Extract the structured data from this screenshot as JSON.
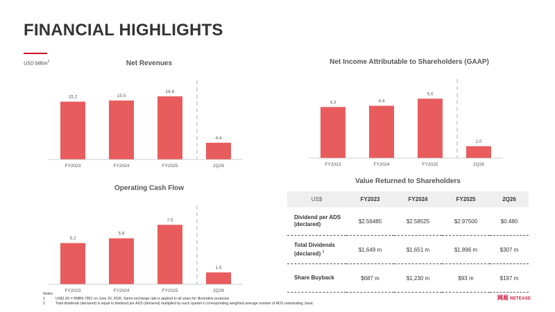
{
  "page": {
    "title": "FINANCIAL HIGHLIGHTS",
    "unit": "USD billion",
    "unit_note": "1"
  },
  "colors": {
    "bar": "#e85c5e",
    "accent": "#c8102e",
    "divider": "#cccccc"
  },
  "chart_data": [
    {
      "type": "bar",
      "title": "Net Revenues",
      "categories": [
        "FY2023",
        "FY2024",
        "FY2025",
        "2Q26"
      ],
      "values": [
        15.2,
        15.5,
        16.6,
        4.4
      ],
      "labels": [
        "15.2",
        "15.5",
        "16.6",
        "4.4"
      ],
      "ylim": [
        0,
        17.5
      ],
      "divider_before_last": true
    },
    {
      "type": "bar",
      "title": "Net Income Attributable to Shareholders (GAAP)",
      "categories": [
        "FY2023",
        "FY2024",
        "FY2025",
        "2Q26"
      ],
      "values": [
        4.3,
        4.4,
        5.0,
        1.0
      ],
      "labels": [
        "4.3",
        "4.4",
        "5.0",
        "1.0"
      ],
      "ylim": [
        0,
        5.6
      ],
      "divider_before_last": true
    },
    {
      "type": "bar",
      "title": "Operating Cash Flow",
      "categories": [
        "FY2023",
        "FY2024",
        "FY2025",
        "2Q26"
      ],
      "values": [
        5.2,
        5.8,
        7.5,
        1.5
      ],
      "labels": [
        "5.2",
        "5.8",
        "7.5",
        "1.5"
      ],
      "ylim": [
        0,
        8.4
      ],
      "divider_before_last": true
    },
    {
      "type": "table",
      "title": "Value Returned to Shareholders",
      "columns": [
        "US$",
        "FY2023",
        "FY2024",
        "FY2025",
        "2Q26"
      ],
      "rows": [
        {
          "label": "Dividend per ADS (declared)",
          "note": "",
          "values": [
            "$2.56485",
            "$2.58525",
            "$2.97500",
            "$0.480"
          ]
        },
        {
          "label": "Total Dividends (declared)",
          "note": "2",
          "values": [
            "$1,649 m",
            "$1,651 m",
            "$1,896 m",
            "$307 m"
          ]
        },
        {
          "label": "Share Buyback",
          "note": "",
          "values": [
            "$687 m",
            "$1,230 m",
            "$93 m",
            "$197 m"
          ]
        }
      ]
    }
  ],
  "notes": {
    "heading": "Notes:",
    "items": [
      {
        "num": "1",
        "text": "US$1.00 = RMB6.7851 on June 30, 2026. Same exchange rate is applied to all years for illustrative purposes"
      },
      {
        "num": "2",
        "text": "Total dividends (declared) is equal to dividend per ADS (declared) multiplied by each quarter's corresponding weighted average number of ADS outstanding, basic"
      }
    ]
  },
  "logo": {
    "cn": "网易",
    "en": "NETEASE"
  }
}
